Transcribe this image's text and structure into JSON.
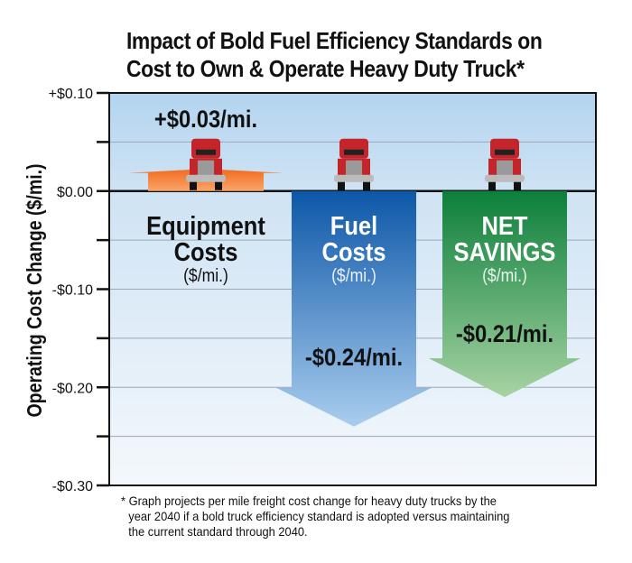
{
  "chart_data": {
    "type": "bar",
    "title_lines": [
      "Impact of Bold Fuel Efficiency Standards on",
      "Cost to Own & Operate Heavy Duty Truck*"
    ],
    "ylabel": "Operating Cost Change ($/mi.)",
    "ylim": [
      -0.3,
      0.1
    ],
    "yticks": [
      0.1,
      0.0,
      -0.1,
      -0.2,
      -0.3
    ],
    "ytick_labels": [
      "+$0.10",
      "$0.00",
      "-$0.10",
      "-$0.20",
      "-$0.30"
    ],
    "grid": true,
    "categories": [
      {
        "name_lines": [
          "Equipment",
          "Costs"
        ],
        "unit": "($/mi.)",
        "value": 0.03,
        "label": "+$0.03/mi.",
        "color": "#f07a2a"
      },
      {
        "name_lines": [
          "Fuel",
          "Costs"
        ],
        "unit": "($/mi.)",
        "value": -0.24,
        "label": "-$0.24/mi.",
        "color": "#1a5fae"
      },
      {
        "name_lines": [
          "NET",
          "SAVINGS"
        ],
        "unit": "($/mi.)",
        "value": -0.21,
        "label": "-$0.21/mi.",
        "color": "#1b8a45"
      }
    ],
    "footnote": [
      "* Graph projects per mile freight cost change for heavy duty trucks by the",
      "year 2040 if a bold truck efficiency standard is adopted versus maintaining",
      "the current standard through 2040."
    ]
  },
  "colors": {
    "plot_bg_top": "#b9d8f0",
    "plot_bg_bottom": "#f2f7fc",
    "truck": "#c3252b"
  }
}
